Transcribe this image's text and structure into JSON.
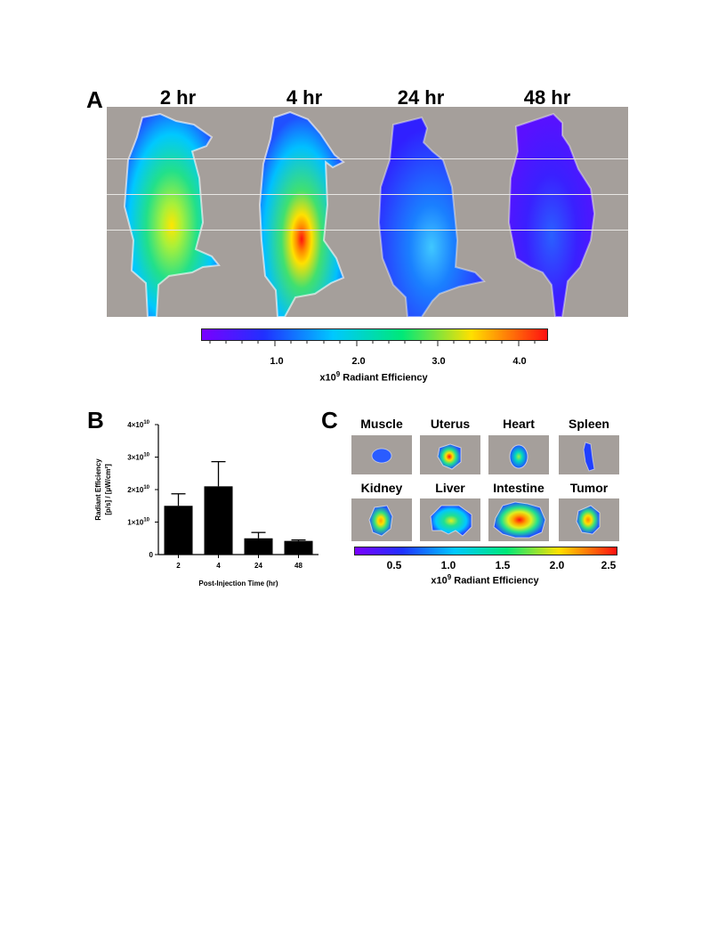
{
  "panel_a": {
    "letter": "A",
    "timepoints": [
      "2 hr",
      "4 hr",
      "24 hr",
      "48 hr"
    ],
    "colorbar": {
      "ticks": [
        "1.0",
        "2.0",
        "3.0",
        "4.0"
      ],
      "title_prefix": "x10",
      "title_exp": "9",
      "title_suffix": " Radiant Efficiency"
    }
  },
  "panel_b": {
    "letter": "B",
    "chart_data": {
      "type": "bar",
      "categories": [
        "2",
        "4",
        "24",
        "48"
      ],
      "values": [
        15000000000.0,
        21000000000.0,
        5000000000.0,
        4200000000.0
      ],
      "errors": [
        3700000000.0,
        7600000000.0,
        1800000000.0,
        300000000.0
      ],
      "xlabel": "Post-Injection Time (hr)",
      "ylabel_line1": "Radiant Efficiency",
      "ylabel_line2": "[p/s] / [µW/cm²]",
      "ylim": [
        0,
        40000000000.0
      ],
      "yticks": [
        {
          "value": 0,
          "mant": "0",
          "exp": ""
        },
        {
          "value": 10000000000.0,
          "mant": "1×10",
          "exp": "10"
        },
        {
          "value": 20000000000.0,
          "mant": "2×10",
          "exp": "10"
        },
        {
          "value": 30000000000.0,
          "mant": "3×10",
          "exp": "10"
        },
        {
          "value": 40000000000.0,
          "mant": "4×10",
          "exp": "10"
        }
      ],
      "bar_color": "#000000"
    }
  },
  "panel_c": {
    "letter": "C",
    "organs": [
      "Muscle",
      "Uterus",
      "Heart",
      "Spleen",
      "Kidney",
      "Liver",
      "Intestine",
      "Tumor"
    ],
    "colorbar": {
      "ticks": [
        "0.5",
        "1.0",
        "1.5",
        "2.0",
        "2.5"
      ],
      "title_prefix": "x10",
      "title_exp": "9",
      "title_suffix": " Radiant Efficiency"
    }
  },
  "colors": {
    "background_gray": "#a59f9b",
    "colormap": [
      "#7a00ff",
      "#2030ff",
      "#00c8ff",
      "#00e878",
      "#ffe000",
      "#ff1010"
    ]
  }
}
